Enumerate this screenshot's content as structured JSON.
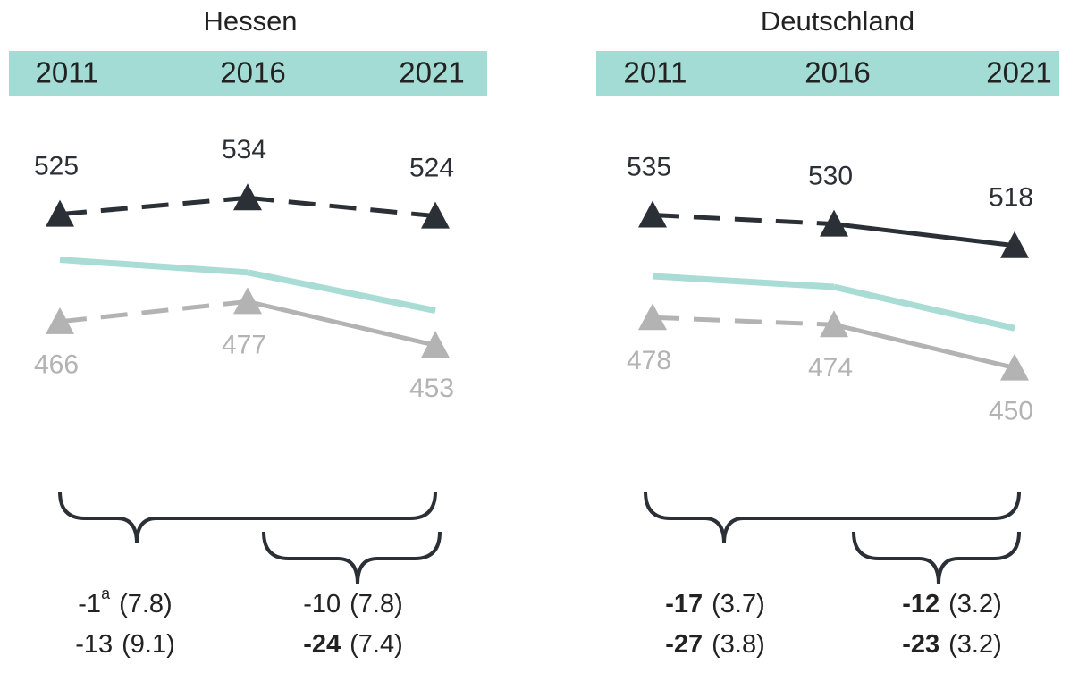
{
  "chart_data": [
    {
      "type": "line",
      "title": "Hessen",
      "categories": [
        "2011",
        "2016",
        "2021"
      ],
      "ylim": [
        407,
        569
      ],
      "series": [
        {
          "color": "#2b2f36",
          "values": [
            525,
            534,
            524
          ],
          "line_styles": [
            "dashed",
            "dashed"
          ],
          "labels": "above"
        },
        {
          "color": "#a8dcd5",
          "values": [
            500,
            493,
            472
          ],
          "line_styles": [
            "solid",
            "solid"
          ]
        },
        {
          "color": "#b3b3b3",
          "values": [
            466,
            477,
            453
          ],
          "line_styles": [
            "dashed",
            "solid"
          ],
          "labels": "below"
        }
      ],
      "differences": [
        [
          {
            "value": -1,
            "note": "a",
            "se": "(7.8)",
            "significant": false
          },
          {
            "value": -10,
            "se": "(7.8)",
            "significant": false
          }
        ],
        [
          {
            "value": -13,
            "se": "(9.1)",
            "significant": false
          },
          {
            "value": -24,
            "se": "(7.4)",
            "significant": true
          }
        ]
      ]
    },
    {
      "type": "line",
      "title": "Deutschland",
      "categories": [
        "2011",
        "2016",
        "2021"
      ],
      "ylim": [
        416,
        580
      ],
      "series": [
        {
          "color": "#2b2f36",
          "values": [
            535,
            530,
            518
          ],
          "line_styles": [
            "dashed",
            "solid"
          ],
          "labels": "above"
        },
        {
          "color": "#a8dcd5",
          "values": [
            501,
            495,
            472
          ],
          "line_styles": [
            "solid",
            "solid"
          ]
        },
        {
          "color": "#b3b3b3",
          "values": [
            478,
            474,
            450
          ],
          "line_styles": [
            "dashed",
            "solid"
          ],
          "labels": "below"
        }
      ],
      "differences": [
        [
          {
            "value": -17,
            "se": "(3.7)",
            "significant": true
          },
          {
            "value": -12,
            "se": "(3.2)",
            "significant": true
          }
        ],
        [
          {
            "value": -27,
            "se": "(3.8)",
            "significant": true
          },
          {
            "value": -23,
            "se": "(3.2)",
            "significant": true
          }
        ]
      ]
    }
  ]
}
